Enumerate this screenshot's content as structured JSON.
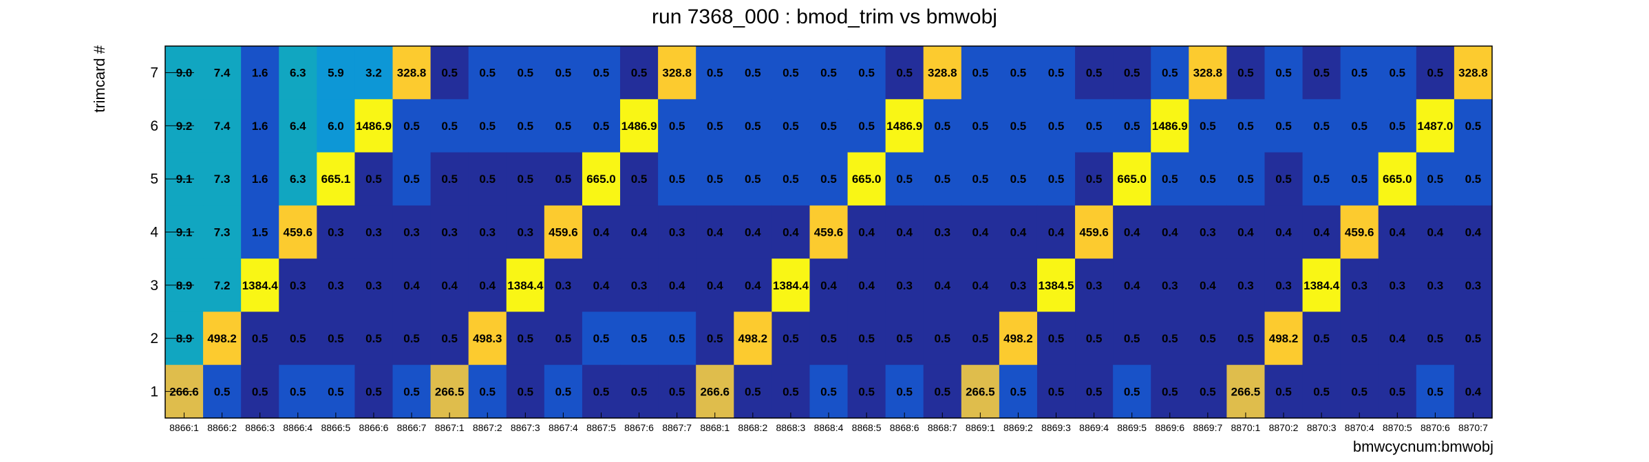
{
  "chart_data": {
    "type": "heatmap",
    "title": "run 7368_000 : bmod_trim vs bmwobj",
    "xlabel": "bmwcycnum:bmwobj",
    "ylabel": "trimcard #",
    "x_categories": [
      "8866:1",
      "8866:2",
      "8866:3",
      "8866:4",
      "8866:5",
      "8866:6",
      "8866:7",
      "8867:1",
      "8867:2",
      "8867:3",
      "8867:4",
      "8867:5",
      "8867:6",
      "8867:7",
      "8868:1",
      "8868:2",
      "8868:3",
      "8868:4",
      "8868:5",
      "8868:6",
      "8868:7",
      "8869:1",
      "8869:2",
      "8869:3",
      "8869:4",
      "8869:5",
      "8869:6",
      "8869:7",
      "8870:1",
      "8870:2",
      "8870:3",
      "8870:4",
      "8870:5",
      "8870:6",
      "8870:7"
    ],
    "y_categories": [
      "1",
      "2",
      "3",
      "4",
      "5",
      "6",
      "7"
    ],
    "colors": {
      "dark_blue": "#232e9a",
      "mid_blue": "#1852c8",
      "teal": "#11a6c1",
      "sky": "#0d97d6",
      "gold": "#dfbd4c",
      "orange": "#fccb2f",
      "yellow": "#f9f615",
      "frame": "#000000"
    },
    "rows": [
      {
        "y": "7",
        "values": [
          "9.0",
          "7.4",
          "1.6",
          "6.3",
          "5.9",
          "3.2",
          "328.8",
          "0.5",
          "0.5",
          "0.5",
          "0.5",
          "0.5",
          "0.5",
          "328.8",
          "0.5",
          "0.5",
          "0.5",
          "0.5",
          "0.5",
          "0.5",
          "328.8",
          "0.5",
          "0.5",
          "0.5",
          "0.5",
          "0.5",
          "0.5",
          "328.8",
          "0.5",
          "0.5",
          "0.5",
          "0.5",
          "0.5",
          "0.5",
          "328.8"
        ]
      },
      {
        "y": "6",
        "values": [
          "9.2",
          "7.4",
          "1.6",
          "6.4",
          "6.0",
          "1486.9",
          "0.5",
          "0.5",
          "0.5",
          "0.5",
          "0.5",
          "0.5",
          "1486.9",
          "0.5",
          "0.5",
          "0.5",
          "0.5",
          "0.5",
          "0.5",
          "1486.9",
          "0.5",
          "0.5",
          "0.5",
          "0.5",
          "0.5",
          "0.5",
          "1486.9",
          "0.5",
          "0.5",
          "0.5",
          "0.5",
          "0.5",
          "0.5",
          "1487.0",
          "0.5"
        ]
      },
      {
        "y": "5",
        "values": [
          "9.1",
          "7.3",
          "1.6",
          "6.3",
          "665.1",
          "0.5",
          "0.5",
          "0.5",
          "0.5",
          "0.5",
          "0.5",
          "665.0",
          "0.5",
          "0.5",
          "0.5",
          "0.5",
          "0.5",
          "0.5",
          "665.0",
          "0.5",
          "0.5",
          "0.5",
          "0.5",
          "0.5",
          "0.5",
          "665.0",
          "0.5",
          "0.5",
          "0.5",
          "0.5",
          "0.5",
          "0.5",
          "665.0",
          "0.5",
          "0.5"
        ]
      },
      {
        "y": "4",
        "values": [
          "9.1",
          "7.3",
          "1.5",
          "459.6",
          "0.3",
          "0.3",
          "0.3",
          "0.3",
          "0.3",
          "0.3",
          "459.6",
          "0.4",
          "0.4",
          "0.3",
          "0.4",
          "0.4",
          "0.4",
          "459.6",
          "0.4",
          "0.4",
          "0.3",
          "0.4",
          "0.4",
          "0.4",
          "459.6",
          "0.4",
          "0.4",
          "0.3",
          "0.4",
          "0.4",
          "0.4",
          "459.6",
          "0.4",
          "0.4",
          "0.4"
        ]
      },
      {
        "y": "3",
        "values": [
          "8.9",
          "7.2",
          "1384.4",
          "0.3",
          "0.3",
          "0.3",
          "0.4",
          "0.4",
          "0.4",
          "1384.4",
          "0.3",
          "0.4",
          "0.3",
          "0.4",
          "0.4",
          "0.4",
          "1384.4",
          "0.4",
          "0.4",
          "0.3",
          "0.4",
          "0.4",
          "0.3",
          "1384.5",
          "0.3",
          "0.4",
          "0.3",
          "0.4",
          "0.3",
          "0.3",
          "1384.4",
          "0.3",
          "0.3",
          "0.3",
          "0.3"
        ]
      },
      {
        "y": "2",
        "values": [
          "8.9",
          "498.2",
          "0.5",
          "0.5",
          "0.5",
          "0.5",
          "0.5",
          "0.5",
          "498.3",
          "0.5",
          "0.5",
          "0.5",
          "0.5",
          "0.5",
          "0.5",
          "498.2",
          "0.5",
          "0.5",
          "0.5",
          "0.5",
          "0.5",
          "0.5",
          "498.2",
          "0.5",
          "0.5",
          "0.5",
          "0.5",
          "0.5",
          "0.5",
          "498.2",
          "0.5",
          "0.5",
          "0.4",
          "0.5",
          "0.5"
        ]
      },
      {
        "y": "1",
        "values": [
          "266.6",
          "0.5",
          "0.5",
          "0.5",
          "0.5",
          "0.5",
          "0.5",
          "266.5",
          "0.5",
          "0.5",
          "0.5",
          "0.5",
          "0.5",
          "0.5",
          "266.6",
          "0.5",
          "0.5",
          "0.5",
          "0.5",
          "0.5",
          "0.5",
          "266.5",
          "0.5",
          "0.5",
          "0.5",
          "0.5",
          "0.5",
          "0.5",
          "266.5",
          "0.5",
          "0.5",
          "0.5",
          "0.5",
          "0.5",
          "0.4"
        ]
      }
    ],
    "color_keys": {
      "7": [
        "teal",
        "teal",
        "mid_blue",
        "teal",
        "sky",
        "sky",
        "orange",
        "dark_blue",
        "mid_blue",
        "mid_blue",
        "mid_blue",
        "mid_blue",
        "dark_blue",
        "orange",
        "mid_blue",
        "mid_blue",
        "mid_blue",
        "mid_blue",
        "mid_blue",
        "dark_blue",
        "orange",
        "mid_blue",
        "mid_blue",
        "mid_blue",
        "dark_blue",
        "dark_blue",
        "mid_blue",
        "orange",
        "dark_blue",
        "mid_blue",
        "dark_blue",
        "mid_blue",
        "mid_blue",
        "dark_blue",
        "orange"
      ],
      "6": [
        "teal",
        "teal",
        "mid_blue",
        "teal",
        "sky",
        "yellow",
        "mid_blue",
        "mid_blue",
        "mid_blue",
        "mid_blue",
        "mid_blue",
        "mid_blue",
        "yellow",
        "mid_blue",
        "mid_blue",
        "mid_blue",
        "mid_blue",
        "mid_blue",
        "mid_blue",
        "yellow",
        "mid_blue",
        "mid_blue",
        "mid_blue",
        "mid_blue",
        "mid_blue",
        "mid_blue",
        "yellow",
        "mid_blue",
        "mid_blue",
        "mid_blue",
        "mid_blue",
        "mid_blue",
        "mid_blue",
        "yellow",
        "mid_blue"
      ],
      "5": [
        "teal",
        "teal",
        "mid_blue",
        "teal",
        "yellow",
        "dark_blue",
        "mid_blue",
        "dark_blue",
        "dark_blue",
        "dark_blue",
        "dark_blue",
        "yellow",
        "dark_blue",
        "mid_blue",
        "mid_blue",
        "mid_blue",
        "mid_blue",
        "mid_blue",
        "yellow",
        "mid_blue",
        "mid_blue",
        "mid_blue",
        "mid_blue",
        "mid_blue",
        "dark_blue",
        "yellow",
        "mid_blue",
        "mid_blue",
        "mid_blue",
        "dark_blue",
        "mid_blue",
        "mid_blue",
        "yellow",
        "mid_blue",
        "mid_blue"
      ],
      "4": [
        "teal",
        "teal",
        "mid_blue",
        "orange",
        "dark_blue",
        "dark_blue",
        "dark_blue",
        "dark_blue",
        "dark_blue",
        "dark_blue",
        "orange",
        "dark_blue",
        "dark_blue",
        "dark_blue",
        "dark_blue",
        "dark_blue",
        "dark_blue",
        "orange",
        "dark_blue",
        "dark_blue",
        "dark_blue",
        "dark_blue",
        "dark_blue",
        "dark_blue",
        "orange",
        "dark_blue",
        "dark_blue",
        "dark_blue",
        "dark_blue",
        "dark_blue",
        "dark_blue",
        "orange",
        "dark_blue",
        "dark_blue",
        "dark_blue"
      ],
      "3": [
        "teal",
        "teal",
        "yellow",
        "dark_blue",
        "dark_blue",
        "dark_blue",
        "dark_blue",
        "dark_blue",
        "dark_blue",
        "yellow",
        "dark_blue",
        "dark_blue",
        "dark_blue",
        "dark_blue",
        "dark_blue",
        "dark_blue",
        "yellow",
        "dark_blue",
        "dark_blue",
        "dark_blue",
        "dark_blue",
        "dark_blue",
        "dark_blue",
        "yellow",
        "dark_blue",
        "dark_blue",
        "dark_blue",
        "dark_blue",
        "dark_blue",
        "dark_blue",
        "yellow",
        "dark_blue",
        "dark_blue",
        "dark_blue",
        "dark_blue"
      ],
      "2": [
        "teal",
        "orange",
        "dark_blue",
        "dark_blue",
        "dark_blue",
        "dark_blue",
        "dark_blue",
        "dark_blue",
        "orange",
        "dark_blue",
        "dark_blue",
        "mid_blue",
        "mid_blue",
        "mid_blue",
        "dark_blue",
        "orange",
        "dark_blue",
        "dark_blue",
        "dark_blue",
        "dark_blue",
        "dark_blue",
        "dark_blue",
        "orange",
        "dark_blue",
        "dark_blue",
        "dark_blue",
        "dark_blue",
        "dark_blue",
        "dark_blue",
        "orange",
        "dark_blue",
        "dark_blue",
        "dark_blue",
        "dark_blue",
        "dark_blue"
      ],
      "1": [
        "gold",
        "mid_blue",
        "dark_blue",
        "mid_blue",
        "mid_blue",
        "dark_blue",
        "mid_blue",
        "gold",
        "mid_blue",
        "dark_blue",
        "mid_blue",
        "dark_blue",
        "dark_blue",
        "dark_blue",
        "gold",
        "dark_blue",
        "dark_blue",
        "mid_blue",
        "dark_blue",
        "mid_blue",
        "dark_blue",
        "gold",
        "mid_blue",
        "dark_blue",
        "dark_blue",
        "mid_blue",
        "dark_blue",
        "dark_blue",
        "gold",
        "dark_blue",
        "dark_blue",
        "dark_blue",
        "dark_blue",
        "mid_blue",
        "dark_blue"
      ]
    },
    "legend": "none",
    "grid": false
  }
}
